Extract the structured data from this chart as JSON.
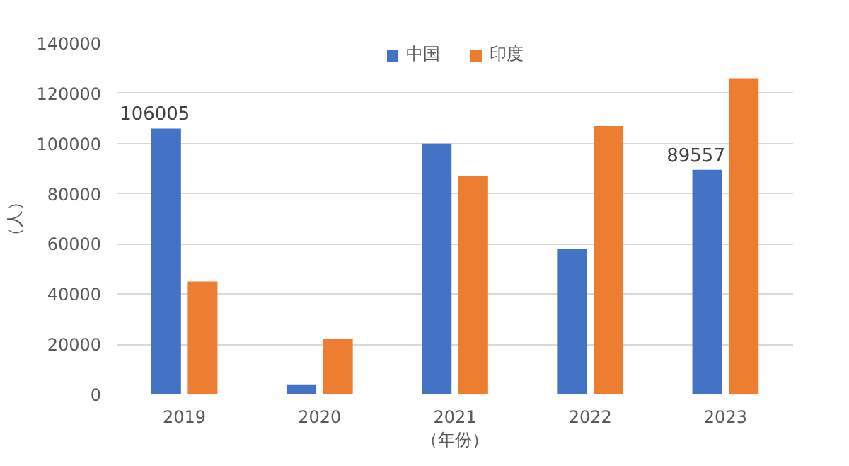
{
  "chart_data": {
    "type": "bar",
    "categories": [
      "2019",
      "2020",
      "2021",
      "2022",
      "2023"
    ],
    "series": [
      {
        "name": "中国",
        "color": "#4472c4",
        "values": [
          106005,
          4000,
          100000,
          58000,
          89557
        ],
        "value_labels": [
          "106005",
          null,
          null,
          null,
          "89557"
        ]
      },
      {
        "name": "印度",
        "color": "#ed7d31",
        "values": [
          45000,
          22000,
          87000,
          107000,
          126000
        ]
      }
    ],
    "xlabel": "（年份）",
    "ylabel": "（人）",
    "ylim": [
      0,
      140000
    ],
    "yticks": [
      0,
      20000,
      40000,
      60000,
      80000,
      100000,
      120000,
      140000
    ],
    "grid": "y",
    "legend": "top"
  }
}
